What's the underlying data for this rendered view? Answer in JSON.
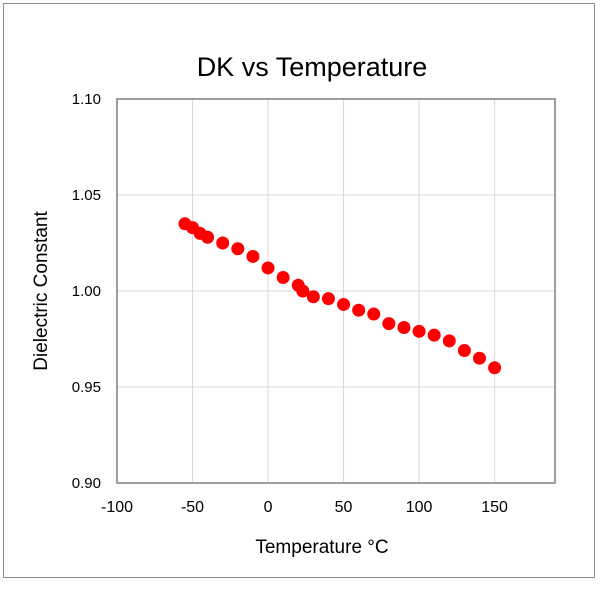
{
  "chart_data": {
    "type": "scatter",
    "title": "DK vs Temperature",
    "xlabel": "Temperature °C",
    "ylabel": "Dielectric Constant",
    "xlim": [
      -100,
      190
    ],
    "ylim": [
      0.9,
      1.1
    ],
    "xticks": [
      -100,
      -50,
      0,
      50,
      100,
      150
    ],
    "xtick_labels": [
      "-100",
      "-50",
      "0",
      "50",
      "100",
      "150"
    ],
    "yticks": [
      0.9,
      0.95,
      1.0,
      1.05,
      1.1
    ],
    "ytick_labels": [
      "0.90",
      "0.95",
      "1.00",
      "1.05",
      "1.10"
    ],
    "grid": true,
    "marker_color": "#ff0000",
    "series": [
      {
        "name": "DK",
        "x": [
          -55,
          -50,
          -45,
          -40,
          -30,
          -20,
          -10,
          0,
          10,
          20,
          23,
          30,
          40,
          50,
          60,
          70,
          80,
          90,
          100,
          110,
          120,
          130,
          140,
          150
        ],
        "y": [
          1.035,
          1.033,
          1.03,
          1.028,
          1.025,
          1.022,
          1.018,
          1.012,
          1.007,
          1.003,
          1.0,
          0.997,
          0.996,
          0.993,
          0.99,
          0.988,
          0.983,
          0.981,
          0.979,
          0.977,
          0.974,
          0.969,
          0.965,
          0.96
        ]
      }
    ]
  }
}
